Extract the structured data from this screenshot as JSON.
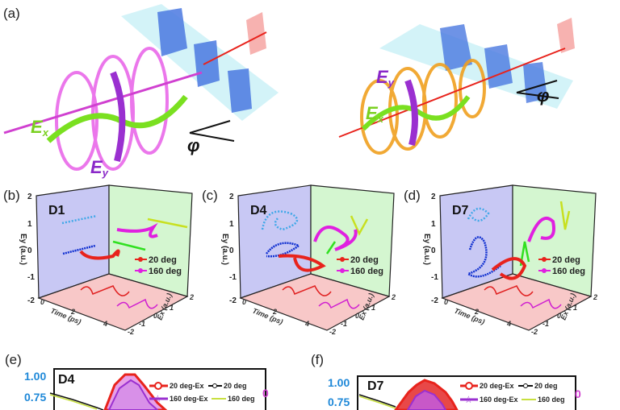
{
  "panel_labels": {
    "a": "(a)",
    "b": "(b)",
    "c": "(c)",
    "d": "(d)",
    "e": "(e)",
    "f": "(f)"
  },
  "panel_a": {
    "left": {
      "ex": "E",
      "ex_sub": "x",
      "ey": "E",
      "ey_sub": "y",
      "angle": "φ"
    },
    "right": {
      "ex": "E",
      "ex_sub": "x",
      "ey": "E",
      "ey_sub": "y",
      "angle": "φ"
    }
  },
  "panels_3d": [
    {
      "device": "D1"
    },
    {
      "device": "D4"
    },
    {
      "device": "D7"
    }
  ],
  "axes_3d": {
    "y_label": "Ey (a.u.)",
    "y_ticks": [
      "2",
      "1",
      "0",
      "-1",
      "-2"
    ],
    "time_label": "Time (ps)",
    "time_ticks": [
      "0",
      "2",
      "4"
    ],
    "ex_label": "Ex (a.u.)",
    "ex_ticks": [
      "-2",
      "-1",
      "0",
      "1",
      "2"
    ]
  },
  "legend_3d": {
    "s1": "20 deg",
    "s2": "160 deg"
  },
  "panel_e": {
    "device": "D4",
    "y_ticks": [
      "1.00",
      "0.75"
    ],
    "right_tick": "0"
  },
  "panel_f": {
    "device": "D7",
    "y_ticks": [
      "1.00",
      "0.75"
    ],
    "right_tick": "0"
  },
  "legend_2d": {
    "a": "20 deg-Ex",
    "b": "20 deg",
    "c": "160 deg-Ex",
    "d": "160 deg"
  },
  "colors": {
    "s20": "#e8231c",
    "s160": "#e020e0",
    "blue": "#1e88d8",
    "purple": "#9a30d0",
    "green": "#6ad21a"
  }
}
